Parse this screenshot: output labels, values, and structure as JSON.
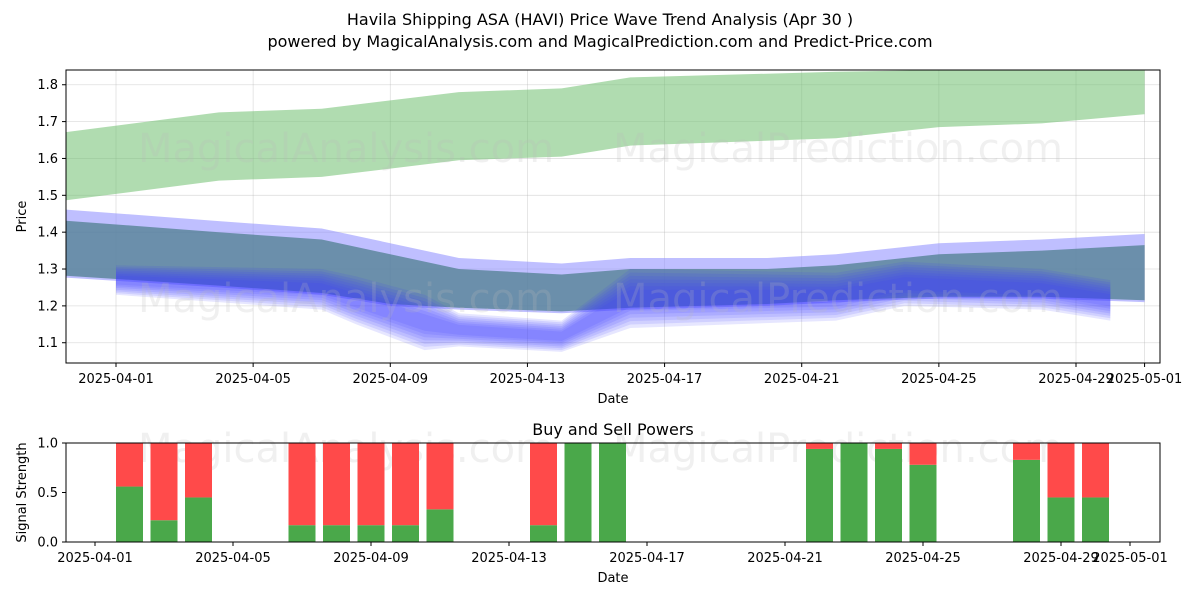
{
  "header": {
    "title": "Havila Shipping ASA (HAVI) Price Wave Trend Analysis (Apr 30 )",
    "subtitle": "powered by MagicalAnalysis.com and MagicalPrediction.com and Predict-Price.com"
  },
  "watermarks": [
    "MagicalAnalysis.com",
    "MagicalPrediction.com"
  ],
  "colors": {
    "green": "#4aa84a",
    "red": "#ff4a4a",
    "blue": "#3b3bff",
    "band_green": "#6fbf6f",
    "band_teal": "#4f7f8f"
  },
  "chart_data": [
    {
      "type": "area",
      "xlabel": "Date",
      "ylabel": "Price",
      "x_ticks": [
        "2025-04-01",
        "2025-04-05",
        "2025-04-09",
        "2025-04-13",
        "2025-04-17",
        "2025-04-21",
        "2025-04-25",
        "2025-04-29",
        "2025-05-01"
      ],
      "y_ticks": [
        "1.1",
        "1.2",
        "1.3",
        "1.4",
        "1.5",
        "1.6",
        "1.7",
        "1.8"
      ],
      "ylim": [
        1.045,
        1.84
      ],
      "grid": true,
      "bands": [
        {
          "color": "green",
          "x": [
            "2025-03-30",
            "2025-04-04",
            "2025-04-07",
            "2025-04-11",
            "2025-04-14",
            "2025-04-16",
            "2025-04-22",
            "2025-04-25",
            "2025-04-28",
            "2025-05-01"
          ],
          "upper": [
            1.665,
            1.725,
            1.735,
            1.78,
            1.79,
            1.82,
            1.835,
            1.84,
            1.84,
            1.84
          ],
          "lower": [
            1.48,
            1.54,
            1.55,
            1.595,
            1.605,
            1.635,
            1.655,
            1.685,
            1.695,
            1.72
          ]
        },
        {
          "color": "teal",
          "x": [
            "2025-03-30",
            "2025-04-04",
            "2025-04-07",
            "2025-04-09",
            "2025-04-11",
            "2025-04-14",
            "2025-04-16",
            "2025-04-20",
            "2025-04-22",
            "2025-04-25",
            "2025-04-28",
            "2025-05-01"
          ],
          "upper": [
            1.465,
            1.43,
            1.41,
            1.37,
            1.33,
            1.315,
            1.33,
            1.33,
            1.34,
            1.37,
            1.38,
            1.395
          ],
          "lower": [
            1.28,
            1.25,
            1.23,
            1.2,
            1.19,
            1.18,
            1.19,
            1.2,
            1.21,
            1.22,
            1.22,
            1.21
          ]
        },
        {
          "color": "blue",
          "x": [
            "2025-04-01",
            "2025-04-07",
            "2025-04-08",
            "2025-04-10",
            "2025-04-11",
            "2025-04-14",
            "2025-04-16",
            "2025-04-22",
            "2025-04-24",
            "2025-04-28",
            "2025-04-30"
          ],
          "upper": [
            1.31,
            1.3,
            1.28,
            1.23,
            1.18,
            1.16,
            1.3,
            1.29,
            1.32,
            1.3,
            1.27
          ],
          "lower": [
            1.23,
            1.19,
            1.15,
            1.08,
            1.09,
            1.075,
            1.14,
            1.16,
            1.2,
            1.19,
            1.16
          ]
        }
      ]
    },
    {
      "type": "bar",
      "title": "Buy and Sell Powers",
      "xlabel": "Date",
      "ylabel": "Signal Strength",
      "x_ticks": [
        "2025-04-01",
        "2025-04-05",
        "2025-04-09",
        "2025-04-13",
        "2025-04-17",
        "2025-04-21",
        "2025-04-25",
        "2025-04-29",
        "2025-05-01"
      ],
      "y_ticks": [
        "0.0",
        "0.5",
        "1.0"
      ],
      "ylim": [
        0,
        1
      ],
      "categories": [
        "2025-04-02",
        "2025-04-03",
        "2025-04-04",
        "2025-04-07",
        "2025-04-08",
        "2025-04-09",
        "2025-04-10",
        "2025-04-11",
        "2025-04-14",
        "2025-04-15",
        "2025-04-16",
        "2025-04-22",
        "2025-04-23",
        "2025-04-24",
        "2025-04-25",
        "2025-04-28",
        "2025-04-29",
        "2025-04-30"
      ],
      "series": [
        {
          "name": "Buy",
          "values": [
            0.56,
            0.22,
            0.45,
            0.17,
            0.17,
            0.17,
            0.17,
            0.33,
            0.17,
            1.0,
            1.0,
            0.94,
            1.0,
            0.94,
            0.78,
            0.83,
            0.45,
            0.45
          ]
        },
        {
          "name": "Sell",
          "values": [
            0.44,
            0.78,
            0.55,
            0.83,
            0.83,
            0.83,
            0.83,
            0.67,
            0.83,
            0.0,
            0.0,
            0.06,
            0.0,
            0.06,
            0.22,
            0.17,
            0.55,
            0.55
          ]
        }
      ]
    }
  ]
}
